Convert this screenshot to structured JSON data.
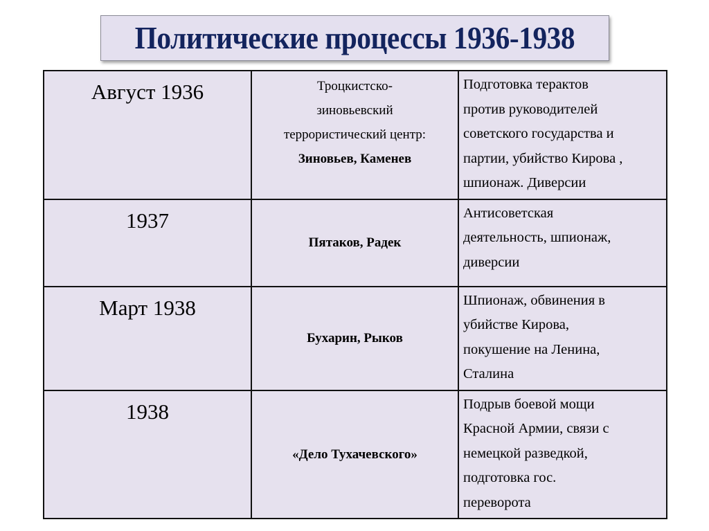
{
  "title": "Политические процессы 1936-1938",
  "table": {
    "rows": [
      {
        "date": "Август 1936",
        "group_lines": [
          "Троцкистско-",
          "зиновьевский",
          "террористический центр:"
        ],
        "defendants": "Зиновьев, Каменев",
        "charges_lines": [
          "Подготовка терактов",
          "против руководителей",
          "советского государства и",
          "партии, убийство Кирова ,",
          "шпионаж. Диверсии"
        ]
      },
      {
        "date": "1937",
        "defendants": "Пятаков, Радек",
        "charges_lines": [
          "Антисоветская",
          "деятельность, шпионаж,",
          "диверсии"
        ]
      },
      {
        "date": "Март 1938",
        "defendants": "Бухарин, Рыков",
        "charges_lines": [
          "Шпионаж, обвинения в",
          "убийстве Кирова,",
          "покушение на Ленина,",
          "Сталина"
        ]
      },
      {
        "date": "1938",
        "defendants": "«Дело Тухачевского»",
        "charges_lines": [
          "Подрыв боевой мощи",
          "Красной Армии, связи с",
          "немецкой разведкой,",
          "подготовка  гос.",
          "переворота"
        ]
      }
    ]
  },
  "colors": {
    "title_text": "#13245e",
    "cell_fill": "#e6e1ee",
    "title_fill": "#e4e0ef"
  }
}
